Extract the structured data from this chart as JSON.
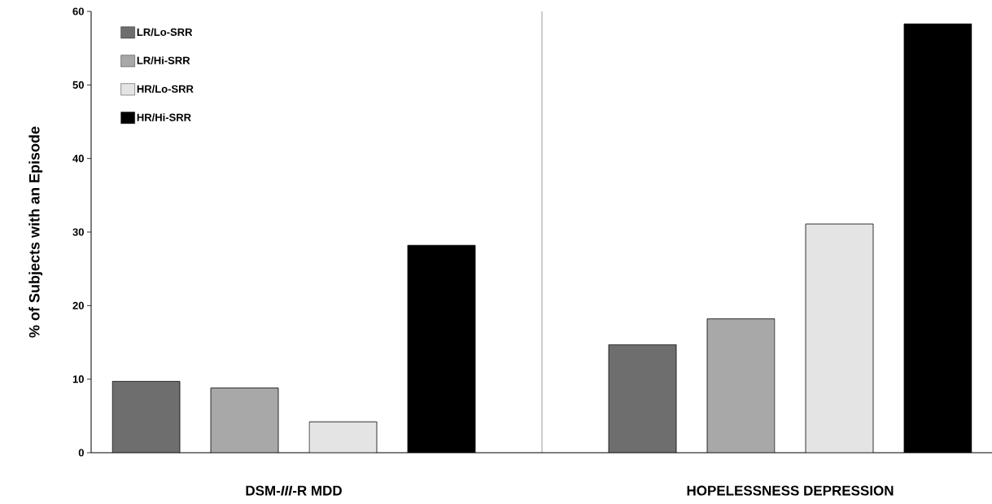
{
  "chart_data": {
    "type": "bar",
    "ylabel": "% of Subjects with an Episode",
    "categories": [
      "DSM-*III*-R MDD",
      "HOPELESSNESS DEPRESSION"
    ],
    "series": [
      {
        "name": "LR/Lo-SRR",
        "color": "#6e6e6e",
        "values": [
          9.7,
          14.7
        ]
      },
      {
        "name": "LR/Hi-SRR",
        "color": "#a8a8a8",
        "values": [
          8.8,
          18.2
        ]
      },
      {
        "name": "HR/Lo-SRR",
        "color": "#e4e4e4",
        "values": [
          4.2,
          31.1
        ]
      },
      {
        "name": "HR/Hi-SRR",
        "color": "#000000",
        "values": [
          28.2,
          58.3
        ]
      }
    ],
    "ylim": [
      0,
      60
    ],
    "yticks": [
      0,
      10,
      20,
      30,
      40,
      50,
      60
    ],
    "legend": "top left"
  }
}
